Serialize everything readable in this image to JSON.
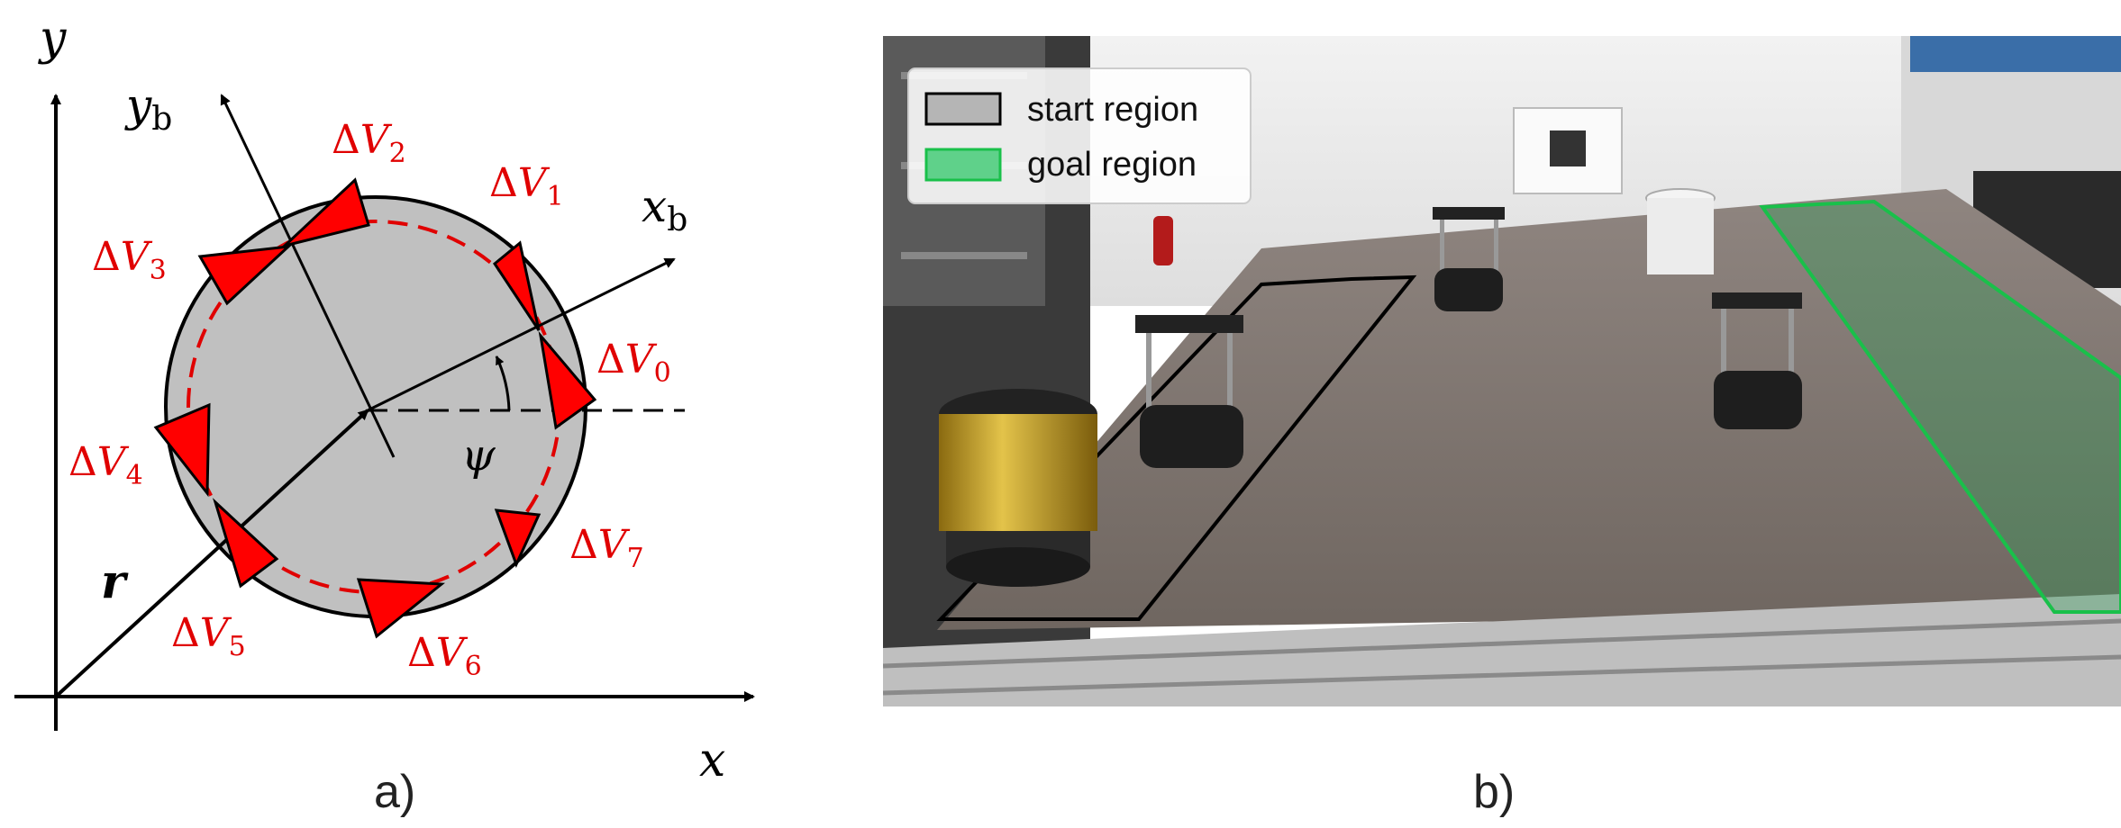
{
  "panel_a": {
    "caption": "a)",
    "axes": {
      "x": "x",
      "y": "y",
      "xb": "x",
      "xb_sub": "b",
      "yb": "y",
      "yb_sub": "b"
    },
    "labels": {
      "r": "r",
      "psi": "ψ"
    },
    "thrusters": [
      {
        "prefix": "Δ",
        "var": "V",
        "sub": "0"
      },
      {
        "prefix": "Δ",
        "var": "V",
        "sub": "1"
      },
      {
        "prefix": "Δ",
        "var": "V",
        "sub": "2"
      },
      {
        "prefix": "Δ",
        "var": "V",
        "sub": "3"
      },
      {
        "prefix": "Δ",
        "var": "V",
        "sub": "4"
      },
      {
        "prefix": "Δ",
        "var": "V",
        "sub": "5"
      },
      {
        "prefix": "Δ",
        "var": "V",
        "sub": "6"
      },
      {
        "prefix": "Δ",
        "var": "V",
        "sub": "7"
      }
    ]
  },
  "panel_b": {
    "caption": "b)",
    "legend": [
      {
        "label": "start region",
        "color": "#000000"
      },
      {
        "label": "goal region",
        "color": "#19c04a"
      }
    ]
  },
  "colors": {
    "thruster": "#ff0000",
    "body": "#c0c0c0",
    "start": "#000000",
    "goal": "#19c04a"
  }
}
